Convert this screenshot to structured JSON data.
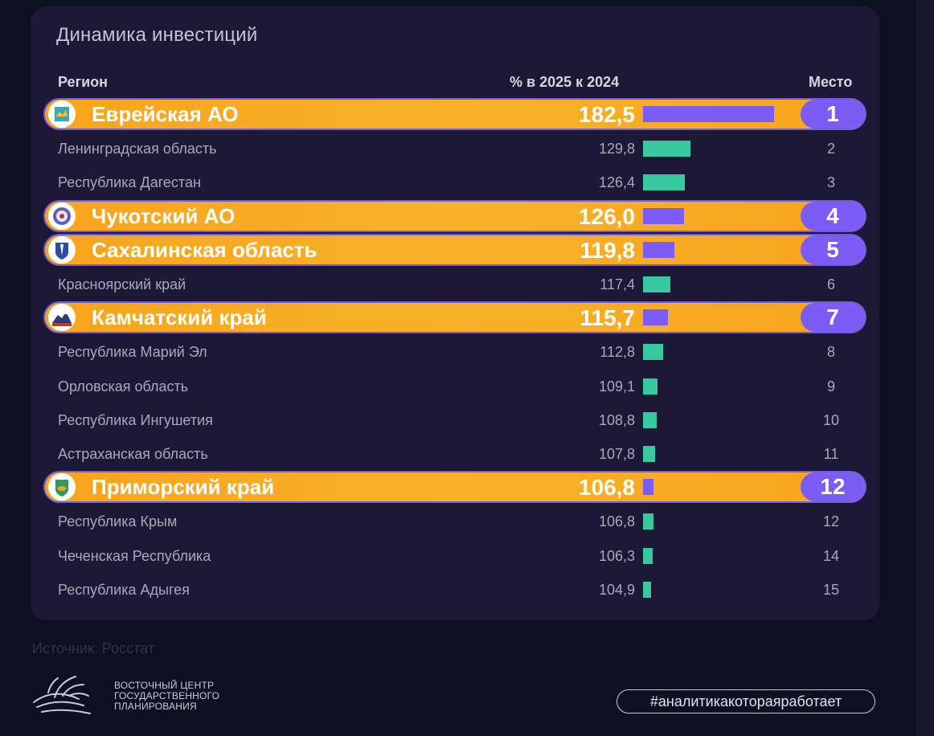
{
  "card": {
    "title": "Динамика инвестиций"
  },
  "source": "Источник: Росстат",
  "logo": {
    "lines": [
      "ВОСТОЧНЫЙ ЦЕНТР",
      "ГОСУДАРСТВЕННОГО",
      "ПЛАНИРОВАНИЯ"
    ]
  },
  "hashtag": "#аналитикакотораяработает",
  "colors": {
    "highlight": "#f9b12a",
    "highlight_bar": "#7b5cf5",
    "regular_bar": "#38c9a0",
    "card_bg": "#1c1836"
  },
  "chart_data": {
    "type": "table",
    "title": "Динамика инвестиций",
    "columns": [
      "Регион",
      "% в 2025 к 2024",
      "Место"
    ],
    "rows": [
      {
        "region": "Еврейская АО",
        "value": 182.5,
        "value_label": "182,5",
        "rank": "1",
        "highlighted": true,
        "emblem": "jewish-ao-emblem-icon"
      },
      {
        "region": "Ленинградская область",
        "value": 129.8,
        "value_label": "129,8",
        "rank": "2",
        "highlighted": false
      },
      {
        "region": "Республика Дагестан",
        "value": 126.4,
        "value_label": "126,4",
        "rank": "3",
        "highlighted": false
      },
      {
        "region": "Чукотский АО",
        "value": 126.0,
        "value_label": "126,0",
        "rank": "4",
        "highlighted": true,
        "emblem": "chukotka-emblem-icon"
      },
      {
        "region": "Сахалинская область",
        "value": 119.8,
        "value_label": "119,8",
        "rank": "5",
        "highlighted": true,
        "emblem": "sakhalin-emblem-icon"
      },
      {
        "region": "Красноярский край",
        "value": 117.4,
        "value_label": "117,4",
        "rank": "6",
        "highlighted": false
      },
      {
        "region": "Камчатский край",
        "value": 115.7,
        "value_label": "115,7",
        "rank": "7",
        "highlighted": true,
        "emblem": "kamchatka-emblem-icon"
      },
      {
        "region": "Республика Марий Эл",
        "value": 112.8,
        "value_label": "112,8",
        "rank": "8",
        "highlighted": false
      },
      {
        "region": "Орловская область",
        "value": 109.1,
        "value_label": "109,1",
        "rank": "9",
        "highlighted": false
      },
      {
        "region": "Республика Ингушетия",
        "value": 108.8,
        "value_label": "108,8",
        "rank": "10",
        "highlighted": false
      },
      {
        "region": "Астраханская область",
        "value": 107.8,
        "value_label": "107,8",
        "rank": "11",
        "highlighted": false
      },
      {
        "region": "Приморский край",
        "value": 106.8,
        "value_label": "106,8",
        "rank": "12",
        "highlighted": true,
        "emblem": "primorye-emblem-icon"
      },
      {
        "region": "Республика Крым",
        "value": 106.8,
        "value_label": "106,8",
        "rank": "12",
        "highlighted": false
      },
      {
        "region": "Чеченская Республика",
        "value": 106.3,
        "value_label": "106,3",
        "rank": "14",
        "highlighted": false
      },
      {
        "region": "Республика Адыгея",
        "value": 104.9,
        "value_label": "104,9",
        "rank": "15",
        "highlighted": false
      }
    ]
  }
}
